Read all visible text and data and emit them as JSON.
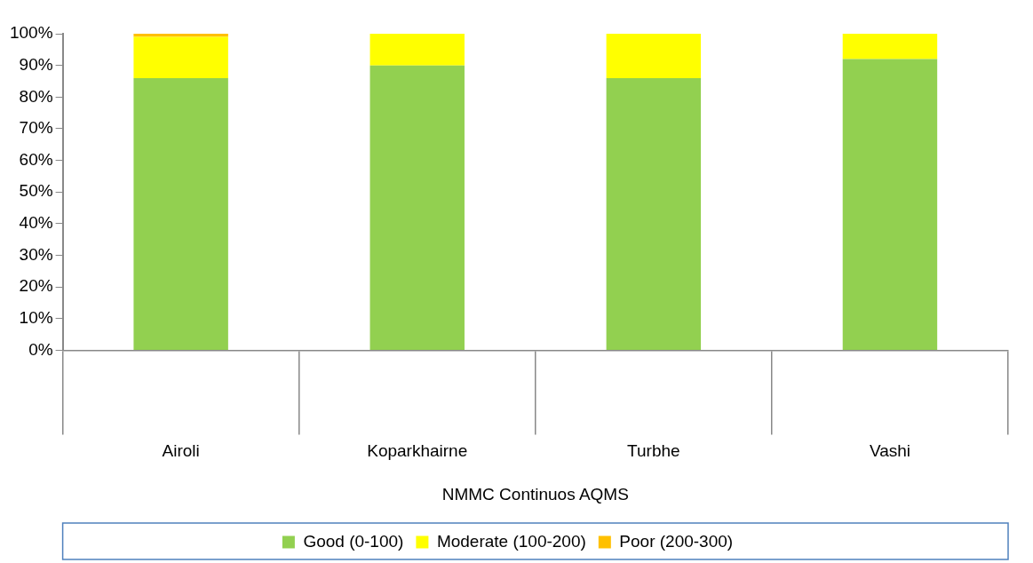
{
  "chart_data": {
    "type": "bar",
    "stacked": true,
    "xlabel": "NMMC Continuos AQMS",
    "categories": [
      "Airoli",
      "Koparkhairne",
      "Turbhe",
      "Vashi"
    ],
    "series": [
      {
        "name": "Good (0-100)",
        "color": "#92d050",
        "values": [
          86,
          90,
          86,
          92
        ]
      },
      {
        "name": "Moderate (100-200)",
        "color": "#ffff00",
        "values": [
          13,
          10,
          14,
          8
        ]
      },
      {
        "name": "Poor (200-300)",
        "color": "#ffc000",
        "values": [
          1,
          0,
          0,
          0
        ]
      }
    ],
    "ylim": [
      0,
      100
    ],
    "yticks": [
      {
        "value": 0,
        "label": "0%"
      },
      {
        "value": 10,
        "label": "10%"
      },
      {
        "value": 20,
        "label": "20%"
      },
      {
        "value": 30,
        "label": "30%"
      },
      {
        "value": 40,
        "label": "40%"
      },
      {
        "value": 50,
        "label": "50%"
      },
      {
        "value": 60,
        "label": "60%"
      },
      {
        "value": 70,
        "label": "70%"
      },
      {
        "value": 80,
        "label": "80%"
      },
      {
        "value": 90,
        "label": "90%"
      },
      {
        "value": 100,
        "label": "100%"
      }
    ],
    "grid": false,
    "legend": "bottom"
  }
}
